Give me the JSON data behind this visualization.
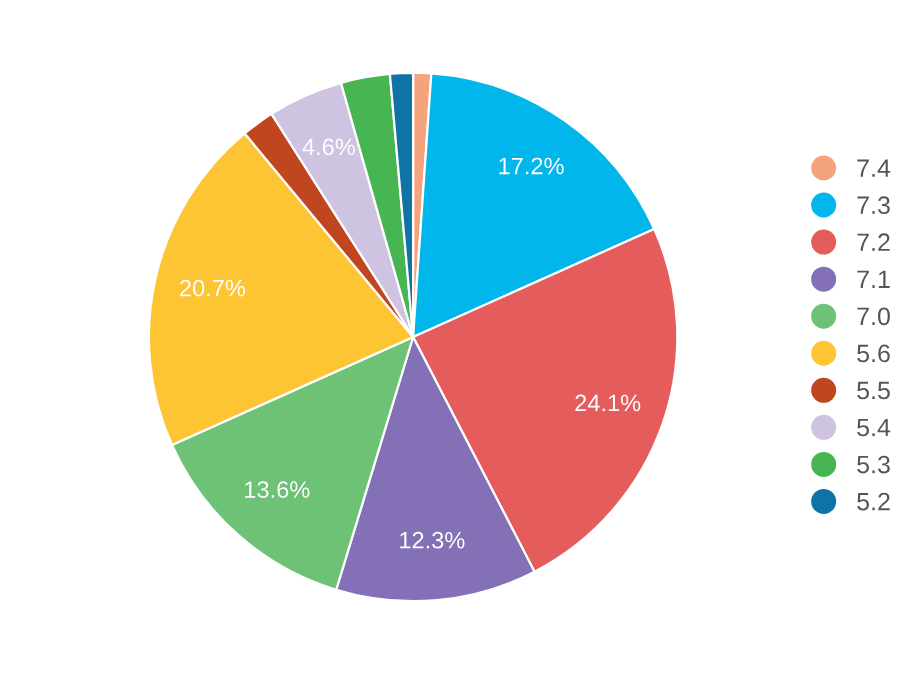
{
  "chart_data": {
    "type": "pie",
    "categories": [
      "7.4",
      "7.3",
      "7.2",
      "7.1",
      "7.0",
      "5.6",
      "5.5",
      "5.4",
      "5.3",
      "5.2"
    ],
    "values": [
      1.1,
      17.2,
      24.1,
      12.3,
      13.6,
      20.7,
      2.0,
      4.6,
      3.0,
      1.4
    ],
    "colors": [
      "#f4a47c",
      "#00b6ea",
      "#e45c5c",
      "#8470b6",
      "#6dc276",
      "#fdc434",
      "#c0461f",
      "#cec4e2",
      "#46b552",
      "#0f73a6"
    ],
    "value_labels": [
      null,
      "17.2%",
      "24.1%",
      "12.3%",
      "13.6%",
      "20.7%",
      null,
      "4.6%",
      null,
      null
    ],
    "legend": "right"
  }
}
